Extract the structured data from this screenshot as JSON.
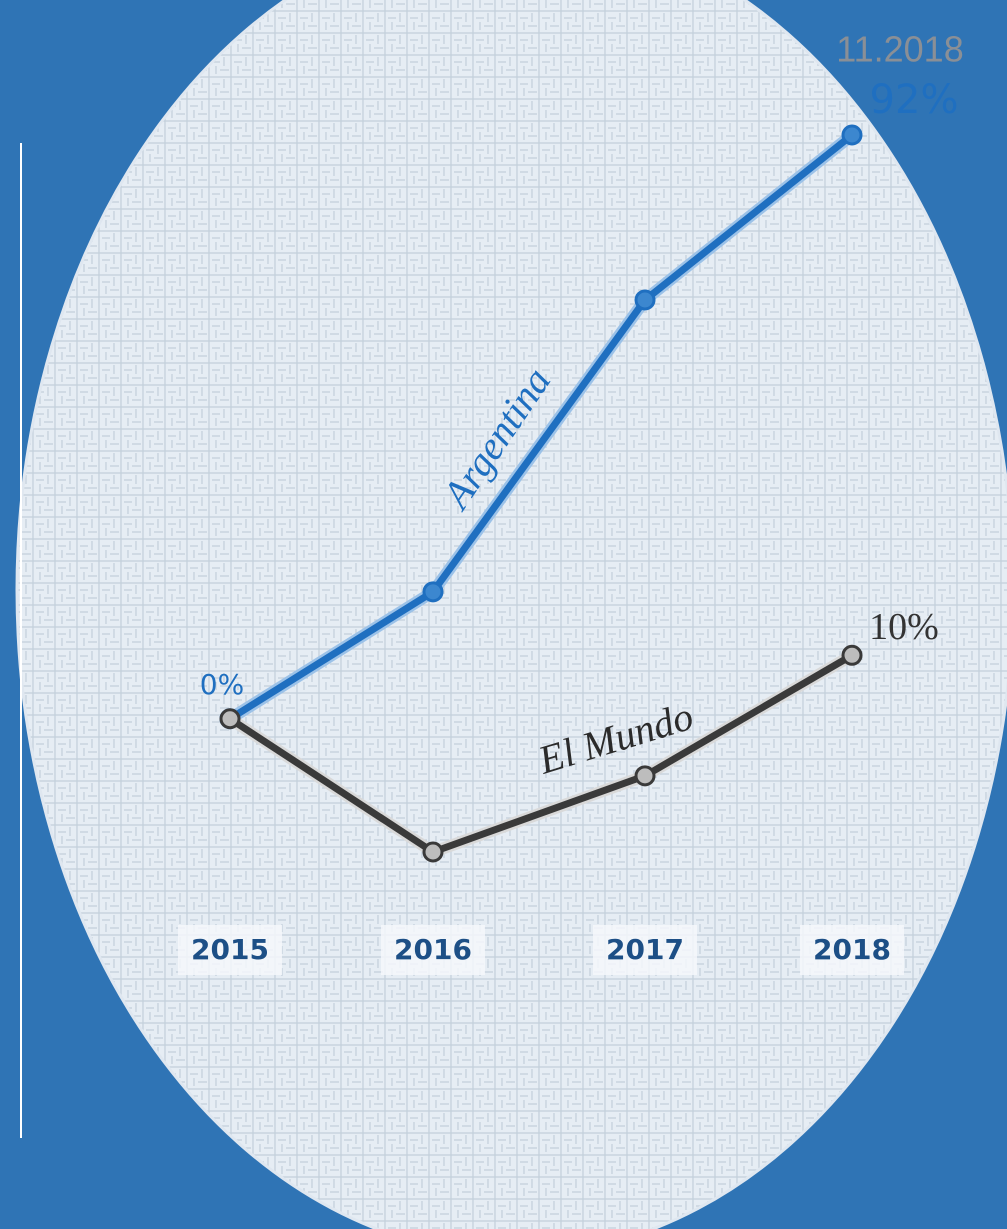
{
  "chart_data": {
    "type": "line",
    "annotation": "11.2018",
    "categories": [
      "2015",
      "2016",
      "2017",
      "2018"
    ],
    "series": [
      {
        "name": "Argentina",
        "color": "#1f6fc0",
        "values": [
          0,
          20,
          66,
          92
        ],
        "value_labels": [
          "0%",
          null,
          null,
          "92%"
        ]
      },
      {
        "name": "El Mundo",
        "color": "#555555",
        "values": [
          0,
          -21,
          -9,
          10
        ],
        "value_labels": [
          null,
          null,
          null,
          "10%"
        ]
      }
    ]
  }
}
